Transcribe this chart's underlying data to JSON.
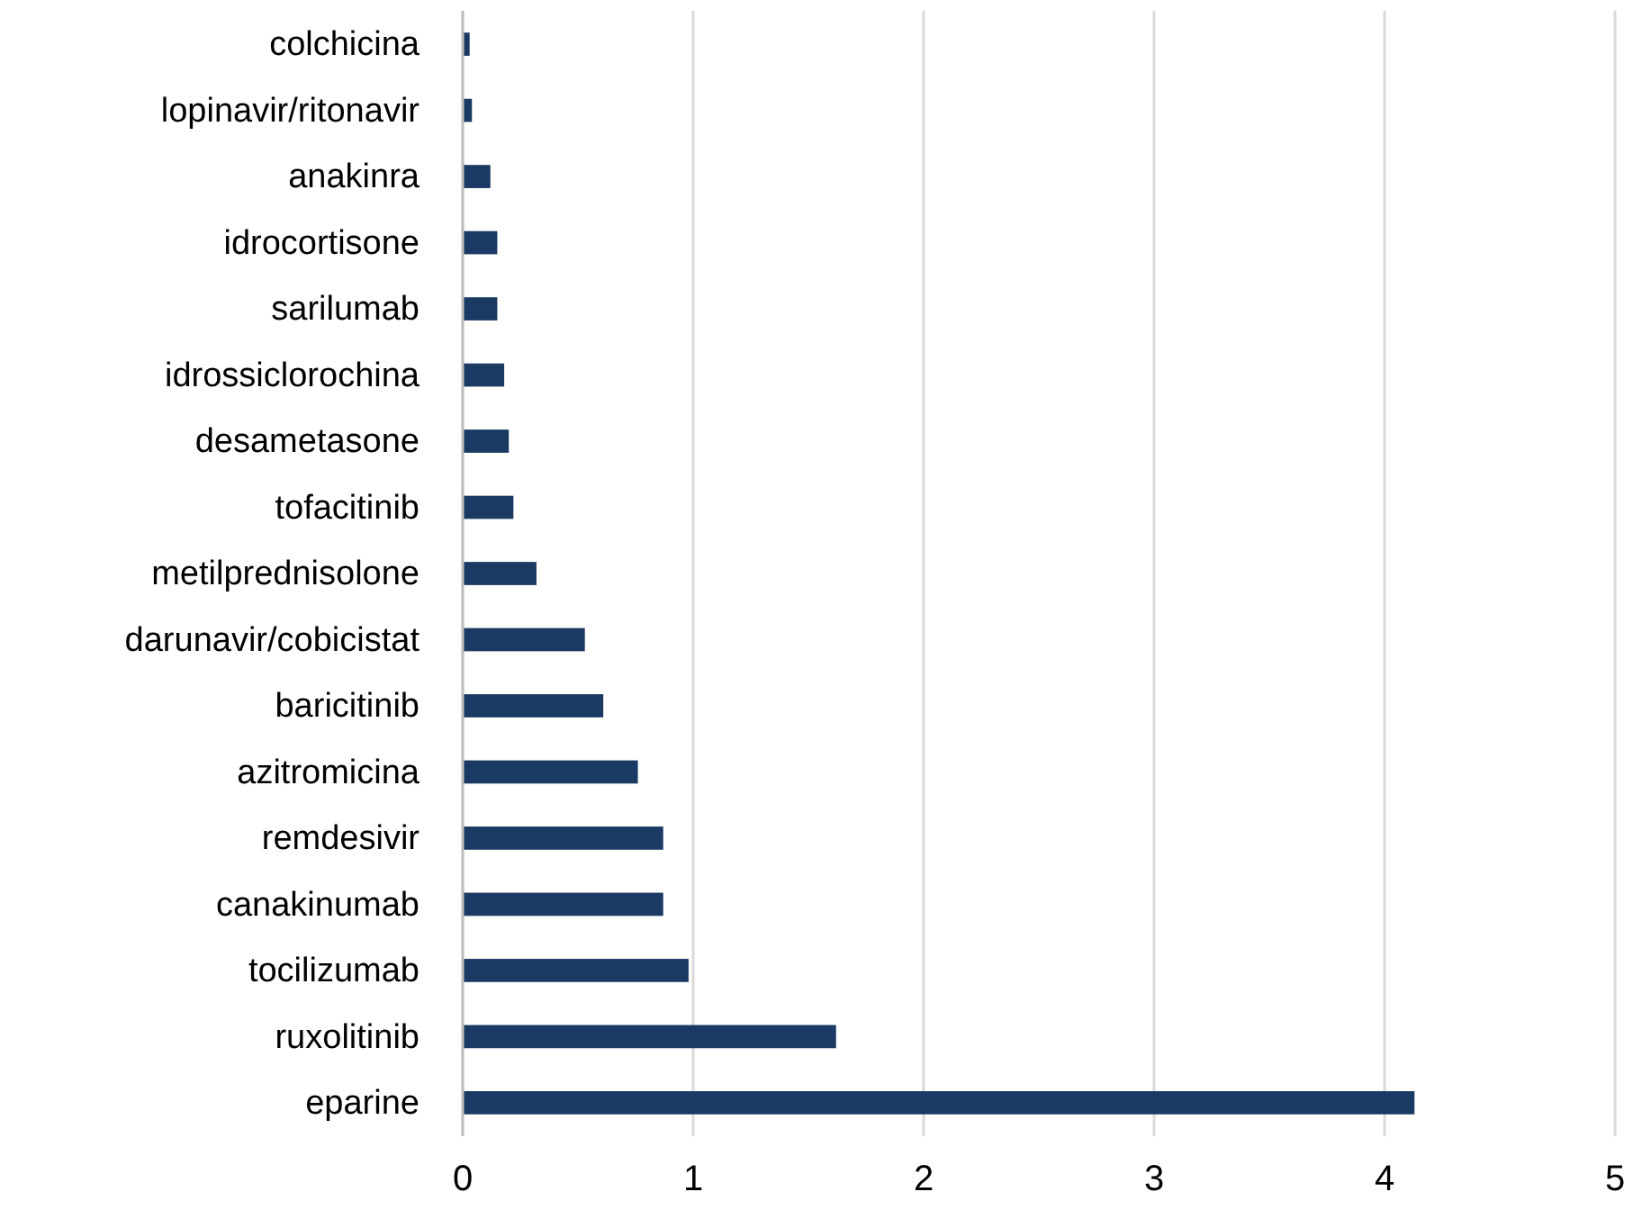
{
  "chart_data": {
    "type": "bar",
    "orientation": "horizontal",
    "categories": [
      "colchicina",
      "lopinavir/ritonavir",
      "anakinra",
      "idrocortisone",
      "sarilumab",
      "idrossiclorochina",
      "desametasone",
      "tofacitinib",
      "metilprednisolone",
      "darunavir/cobicistat",
      "baricitinib",
      "azitromicina",
      "remdesivir",
      "canakinumab",
      "tocilizumab",
      "ruxolitinib",
      "eparine"
    ],
    "values": [
      0.03,
      0.04,
      0.12,
      0.15,
      0.15,
      0.18,
      0.2,
      0.22,
      0.32,
      0.53,
      0.61,
      0.76,
      0.87,
      0.87,
      0.98,
      1.62,
      4.13
    ],
    "color": "#1a3a63",
    "xlim": [
      0,
      5
    ],
    "xticks": [
      0,
      1,
      2,
      3,
      4,
      5
    ],
    "grid": "x"
  }
}
